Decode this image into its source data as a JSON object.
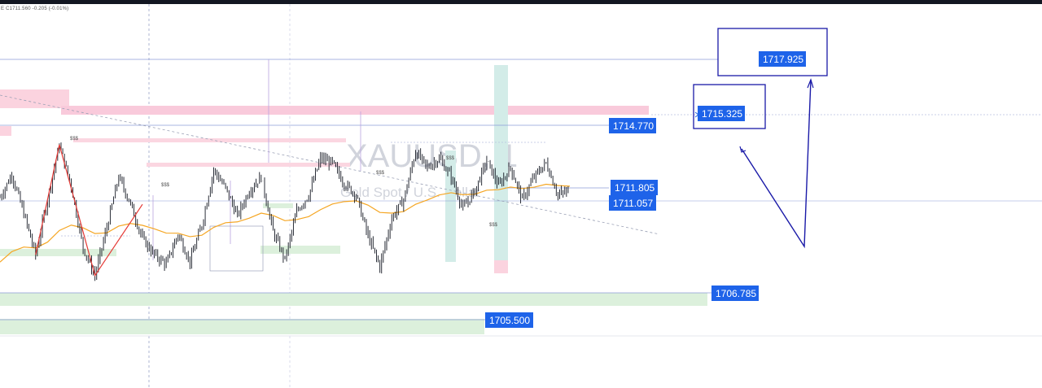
{
  "header": {
    "ohlc_text": "E C1711.560 -0.205 (-0.01%)"
  },
  "watermark": {
    "symbol": "XAUUSD, 1",
    "description": "Gold Spot / U.S. Dollar"
  },
  "colors": {
    "candle": "#131722",
    "ema": "#f5a623",
    "zigzag": "#e53935",
    "tag_bg": "#1e63e9",
    "projection": "#1a1aa8",
    "supply_zone": "#f8c8d8",
    "demand_zone": "#d8efd8",
    "session_box": "#cfe9e6",
    "level_line": "#7b8bd8"
  },
  "chart_data": {
    "type": "candlestick",
    "symbol": "XAUUSD",
    "timeframe": "1",
    "price_labels": [
      {
        "id": "l1717",
        "label": "1717.925",
        "value": 1717.925,
        "style": "projection-target"
      },
      {
        "id": "l1715",
        "label": "1715.325",
        "value": 1715.325,
        "style": "projection-target"
      },
      {
        "id": "l1714",
        "label": "1714.770",
        "value": 1714.77,
        "style": "level"
      },
      {
        "id": "l1711a",
        "label": "1711.805",
        "value": 1711.805,
        "style": "level"
      },
      {
        "id": "l1711b",
        "label": "1711.057",
        "value": 1711.057,
        "style": "level"
      },
      {
        "id": "l1706",
        "label": "1706.785",
        "value": 1706.785,
        "style": "level"
      },
      {
        "id": "l1705",
        "label": "1705.500",
        "value": 1705.5,
        "style": "level"
      }
    ],
    "liquidity_marks": [
      "$$$",
      "$$$",
      "$$$",
      "$$$",
      "$$$"
    ],
    "close_series": [
      1711.9,
      1712.9,
      1711.2,
      1709.4,
      1711.8,
      1714.2,
      1712.4,
      1709.7,
      1708.5,
      1710.6,
      1712.8,
      1711.6,
      1710.1,
      1709.4,
      1709.0,
      1710.3,
      1709.1,
      1710.7,
      1713.1,
      1712.3,
      1711.1,
      1712.2,
      1712.8,
      1710.4,
      1709.2,
      1711.3,
      1712.0,
      1713.6,
      1713.4,
      1712.5,
      1712.0,
      1710.2,
      1708.9,
      1711.0,
      1711.8,
      1713.9,
      1713.2,
      1713.6,
      1712.8,
      1711.4,
      1712.2,
      1713.5,
      1712.4,
      1713.2,
      1711.8,
      1712.8,
      1713.4,
      1712.0,
      1712.2
    ],
    "ylim": [
      1703.6,
      1720.5
    ],
    "projection": {
      "from": 1714.0,
      "low": 1708.8,
      "target": 1717.3
    }
  }
}
